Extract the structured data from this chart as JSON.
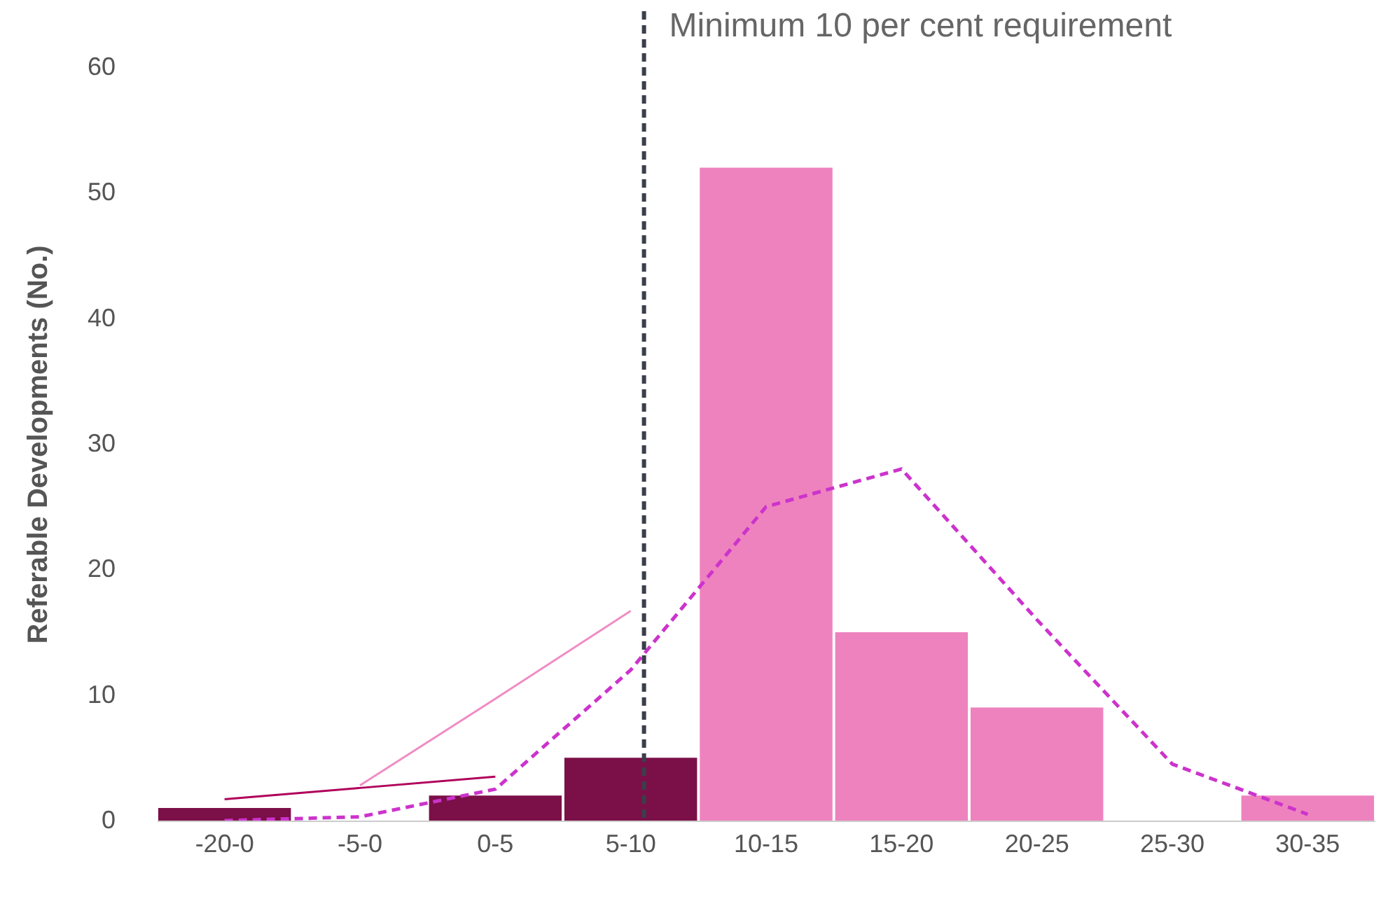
{
  "chart_data": {
    "type": "bar",
    "ylabel": "Referable Developments (No.)",
    "categories": [
      "-20-0",
      "-5-0",
      "0-5",
      "5-10",
      "10-15",
      "15-20",
      "20-25",
      "25-30",
      "30-35"
    ],
    "series": [
      {
        "values": [
          1,
          0,
          2,
          5,
          52,
          15,
          9,
          0,
          2
        ],
        "colors": [
          "#7b0f48",
          "#7b0f48",
          "#7b0f48",
          "#7b0f48",
          "#ee82bf",
          "#ee82bf",
          "#ee82bf",
          "#ee82bf",
          "#ee82bf"
        ]
      },
      {
        "type": "line",
        "color": "#cc33cc",
        "line_style": "dashed",
        "values": [
          0,
          0.3,
          2.5,
          12,
          25,
          28,
          16,
          4.5,
          0.5
        ]
      },
      {
        "type": "line",
        "color": "#b0005a",
        "line_style": "solid",
        "x": [
          "-20-0",
          "-5-0",
          "0-5"
        ],
        "values": [
          1.7,
          2.6,
          3.5
        ]
      },
      {
        "type": "line",
        "color": "#f08cc4",
        "line_style": "solid",
        "x": [
          "-5-0",
          "0-5",
          "5-10"
        ],
        "values": [
          2.8,
          9.7,
          16.7
        ]
      }
    ],
    "ylim": [
      0,
      60
    ],
    "yticks": [
      0,
      10,
      20,
      30,
      40,
      50,
      60
    ],
    "grid": false,
    "ref_lines": [
      {
        "axis": "x",
        "value": "5-10",
        "label": "Minimum 10 per cent requirement",
        "color": "#3a3f4a",
        "line_style": "dashed"
      }
    ]
  }
}
